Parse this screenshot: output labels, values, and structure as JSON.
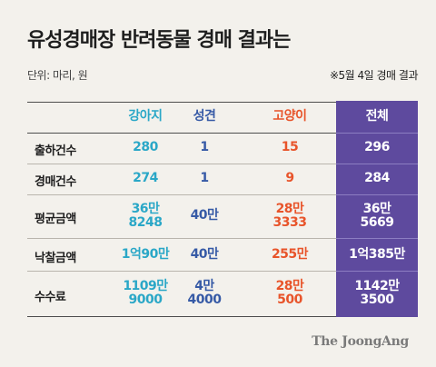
{
  "title": "유성경매장 반려동물 경매 결과는",
  "unit_note": "단위: 마리, 원",
  "date_note": "※5월 4일 경매 결과",
  "columns": [
    "강아지",
    "성견",
    "고양이",
    "전체"
  ],
  "rows": [
    {
      "label": "출하건수",
      "values": [
        "280",
        "1",
        "15",
        "296"
      ]
    },
    {
      "label": "경매건수",
      "values": [
        "274",
        "1",
        "9",
        "284"
      ]
    },
    {
      "label": "평균금액",
      "values": [
        "36만\n8248",
        "40만",
        "28만\n3333",
        "36만\n5669"
      ]
    },
    {
      "label": "낙찰금액",
      "values": [
        "1억90만",
        "40만",
        "255만",
        "1억385만"
      ]
    },
    {
      "label": "수수료",
      "values": [
        "1109만\n9000",
        "4만\n4000",
        "28만\n500",
        "1142만\n3500"
      ]
    }
  ],
  "colors": {
    "dog": "#2aa7c7",
    "adult_dog": "#365aa6",
    "cat": "#e8542a",
    "total_bg": "#5e4a9e"
  },
  "source": "The JoongAng"
}
